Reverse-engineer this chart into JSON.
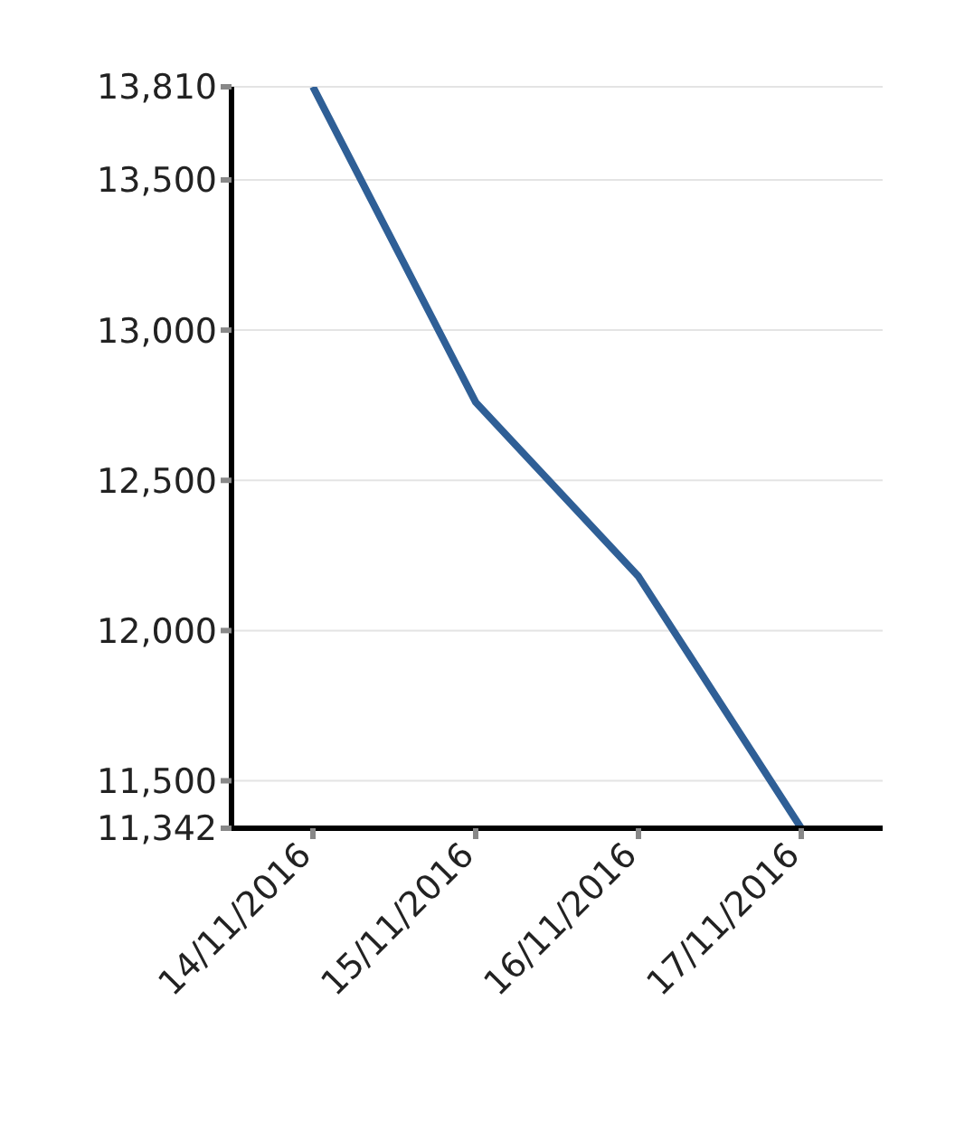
{
  "chart_data": {
    "type": "line",
    "categories": [
      "14/11/2016",
      "15/11/2016",
      "16/11/2016",
      "17/11/2016"
    ],
    "series": [
      {
        "color": "#2f5f96",
        "values": [
          13810,
          12760,
          12180,
          11342
        ]
      }
    ],
    "ylim": [
      11342,
      13810
    ],
    "yticks": [
      {
        "value": 11342,
        "label": "11,342"
      },
      {
        "value": 11500,
        "label": "11,500"
      },
      {
        "value": 12000,
        "label": "12,000"
      },
      {
        "value": 12500,
        "label": "12,500"
      },
      {
        "value": 13000,
        "label": "13,000"
      },
      {
        "value": 13500,
        "label": "13,500"
      },
      {
        "value": 13810,
        "label": "13,810"
      }
    ],
    "grid": "y",
    "marker": "none",
    "line_style": "solid"
  }
}
